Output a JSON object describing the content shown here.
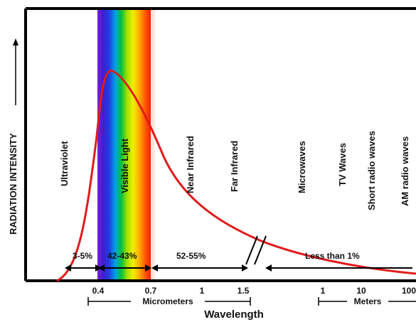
{
  "y_axis_label": "RADIATION INTENSITY",
  "x_axis_label": "Wavelength",
  "regions": [
    {
      "label": "Ultraviolet"
    },
    {
      "label": "Visible Light"
    },
    {
      "label": "Near Infrared"
    },
    {
      "label": "Far Infrared"
    },
    {
      "label": "Microwaves"
    },
    {
      "label": "TV Waves"
    },
    {
      "label": "Short radio waves"
    },
    {
      "label": "AM radio waves"
    }
  ],
  "percentages": [
    {
      "label": "3-5%"
    },
    {
      "label": "42-43%"
    },
    {
      "label": "52-55%"
    },
    {
      "label": "Less than 1%"
    }
  ],
  "ticks": {
    "micro": [
      "0.4",
      "0.7",
      "1",
      "1.5"
    ],
    "meters": [
      "1",
      "10",
      "100"
    ]
  },
  "scale_labels": {
    "micrometers": "Micrometers",
    "meters": "Meters"
  },
  "colors": {
    "curve": "#e01b1b",
    "frame": "#000000",
    "spectrum": [
      "#7a1fd8",
      "#3d1fd0",
      "#1f3fe0",
      "#00a0e8",
      "#00c040",
      "#a0e000",
      "#f0f000",
      "#ffb000",
      "#ff6000",
      "#ff1a00"
    ]
  }
}
